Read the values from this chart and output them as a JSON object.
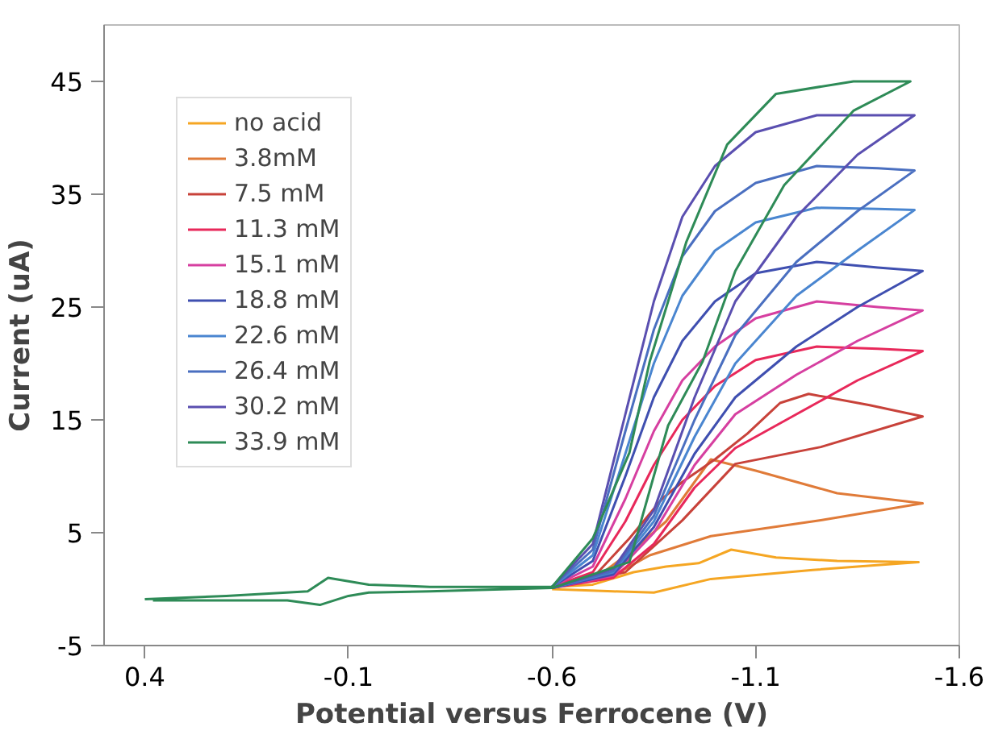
{
  "chart_data": {
    "type": "line",
    "xlabel": "Potential versus Ferrocene (V)",
    "ylabel": "Current (uA)",
    "xlim": [
      0.5,
      -1.6
    ],
    "ylim": [
      -5,
      50
    ],
    "xticks": [
      0.4,
      -0.1,
      -0.6,
      -1.1,
      -1.6
    ],
    "yticks": [
      -5,
      5,
      15,
      25,
      35,
      45
    ],
    "grid": false,
    "legend": "top left",
    "marker": "none",
    "line_style": "solid",
    "series": [
      {
        "name": "no acid",
        "color": "#f5a623",
        "x": [
          -0.6,
          -0.7,
          -0.8,
          -0.88,
          -0.96,
          -1.04,
          -1.15,
          -1.3,
          -1.5,
          -1.35,
          -1.24,
          -0.99,
          -0.85,
          -0.75,
          -0.6
        ],
        "values": [
          0.2,
          0.4,
          1.5,
          2.0,
          2.3,
          3.5,
          2.8,
          2.5,
          2.4,
          2.0,
          1.7,
          0.9,
          -0.3,
          -0.2,
          0.0
        ]
      },
      {
        "name": "3.8mM",
        "color": "#e07b39",
        "x": [
          -0.6,
          -0.7,
          -0.8,
          -0.88,
          -0.94,
          -0.99,
          -1.1,
          -1.3,
          -1.51,
          -1.26,
          -0.99,
          -0.84,
          -0.75,
          -0.6
        ],
        "values": [
          0.2,
          0.8,
          3.5,
          6.0,
          9.0,
          11.5,
          10.5,
          8.5,
          7.6,
          6.1,
          4.7,
          3.0,
          1.2,
          0.1
        ]
      },
      {
        "name": "7.5 mM",
        "color": "#c8423a",
        "x": [
          -0.6,
          -0.7,
          -0.79,
          -0.87,
          -0.92,
          -1.0,
          -1.08,
          -1.16,
          -1.23,
          -1.38,
          -1.51,
          -1.26,
          -1.05,
          -0.92,
          -0.78,
          -0.6
        ],
        "values": [
          0.2,
          1.0,
          4.5,
          8.0,
          9.5,
          11.5,
          13.8,
          16.5,
          17.3,
          16.3,
          15.3,
          12.6,
          11.1,
          6.1,
          1.5,
          0.1
        ]
      },
      {
        "name": "11.3 mM",
        "color": "#e8285a",
        "x": [
          -0.6,
          -0.7,
          -0.78,
          -0.85,
          -0.92,
          -1.0,
          -1.1,
          -1.25,
          -1.4,
          -1.51,
          -1.35,
          -1.2,
          -1.05,
          -0.95,
          -0.85,
          -0.75,
          -0.6
        ],
        "values": [
          0.2,
          1.5,
          6,
          11,
          15,
          18,
          20.3,
          21.5,
          21.3,
          21.1,
          18.5,
          15.5,
          12.5,
          9.0,
          4.0,
          1.0,
          0.1
        ]
      },
      {
        "name": "15.1 mM",
        "color": "#d63fa0",
        "x": [
          -0.6,
          -0.7,
          -0.78,
          -0.85,
          -0.92,
          -1.0,
          -1.1,
          -1.25,
          -1.4,
          -1.51,
          -1.35,
          -1.2,
          -1.05,
          -0.95,
          -0.85,
          -0.75,
          -0.6
        ],
        "values": [
          0.2,
          2,
          8,
          14,
          18.5,
          21.5,
          24,
          25.5,
          25.0,
          24.7,
          22,
          19,
          15.5,
          11,
          5,
          1.2,
          0.1
        ]
      },
      {
        "name": "18.8 mM",
        "color": "#3f4fb0",
        "x": [
          -0.6,
          -0.7,
          -0.78,
          -0.85,
          -0.92,
          -1.0,
          -1.1,
          -1.25,
          -1.4,
          -1.51,
          -1.35,
          -1.2,
          -1.05,
          -0.95,
          -0.85,
          -0.75,
          -0.6
        ],
        "values": [
          0.2,
          2.5,
          10,
          17,
          22,
          25.5,
          28,
          29,
          28.5,
          28.2,
          25,
          21.5,
          17,
          12,
          5.5,
          1.3,
          0.1
        ]
      },
      {
        "name": "22.6 mM",
        "color": "#4a86d0",
        "x": [
          -0.6,
          -0.7,
          -0.78,
          -0.85,
          -0.92,
          -1.0,
          -1.1,
          -1.25,
          -1.4,
          -1.49,
          -1.35,
          -1.2,
          -1.05,
          -0.95,
          -0.85,
          -0.75,
          -0.6
        ],
        "values": [
          0.2,
          3,
          12,
          20,
          26,
          30,
          32.5,
          33.8,
          33.7,
          33.6,
          30,
          26,
          20,
          13.5,
          6,
          1.5,
          0.1
        ]
      },
      {
        "name": "26.4 mM",
        "color": "#4a6fc0",
        "x": [
          -0.6,
          -0.7,
          -0.78,
          -0.85,
          -0.92,
          -1.0,
          -1.1,
          -1.25,
          -1.4,
          -1.49,
          -1.35,
          -1.2,
          -1.05,
          -0.95,
          -0.85,
          -0.75,
          -0.6
        ],
        "values": [
          0.2,
          3.5,
          14,
          23,
          29.5,
          33.5,
          36,
          37.5,
          37.3,
          37.1,
          33.5,
          29,
          22.5,
          15,
          6.5,
          1.6,
          0.1
        ]
      },
      {
        "name": "30.2 mM",
        "color": "#5a4fb0",
        "x": [
          -0.6,
          -0.7,
          -0.78,
          -0.85,
          -0.92,
          -1.0,
          -1.1,
          -1.25,
          -1.4,
          -1.49,
          -1.35,
          -1.2,
          -1.05,
          -0.95,
          -0.85,
          -0.75,
          -0.6
        ],
        "values": [
          0.2,
          4,
          15.5,
          25.5,
          33,
          37.5,
          40.5,
          42,
          42,
          42,
          38.5,
          33,
          25.5,
          17,
          7,
          1.8,
          0.1
        ]
      },
      {
        "name": "33.9 mM",
        "color": "#2e8b57",
        "x": [
          0.4,
          0.2,
          0.0,
          -0.05,
          -0.15,
          -0.3,
          -0.6,
          -0.7,
          -0.79,
          -0.84,
          -0.93,
          -1.03,
          -1.15,
          -1.34,
          -1.48,
          -1.34,
          -1.17,
          -1.05,
          -0.97,
          -0.885,
          -0.79,
          -0.6,
          -0.3,
          -0.15,
          -0.1,
          -0.03,
          0.05,
          0.2,
          0.38
        ],
        "values": [
          -0.9,
          -0.6,
          -0.2,
          1.0,
          0.4,
          0.2,
          0.2,
          4.5,
          12.1,
          20.2,
          30.8,
          39.4,
          43.9,
          45,
          45,
          42.4,
          35.8,
          28.2,
          20.2,
          14.5,
          2.4,
          0.1,
          -0.2,
          -0.3,
          -0.6,
          -1.4,
          -1.0,
          -1.0,
          -1.0
        ]
      }
    ]
  }
}
